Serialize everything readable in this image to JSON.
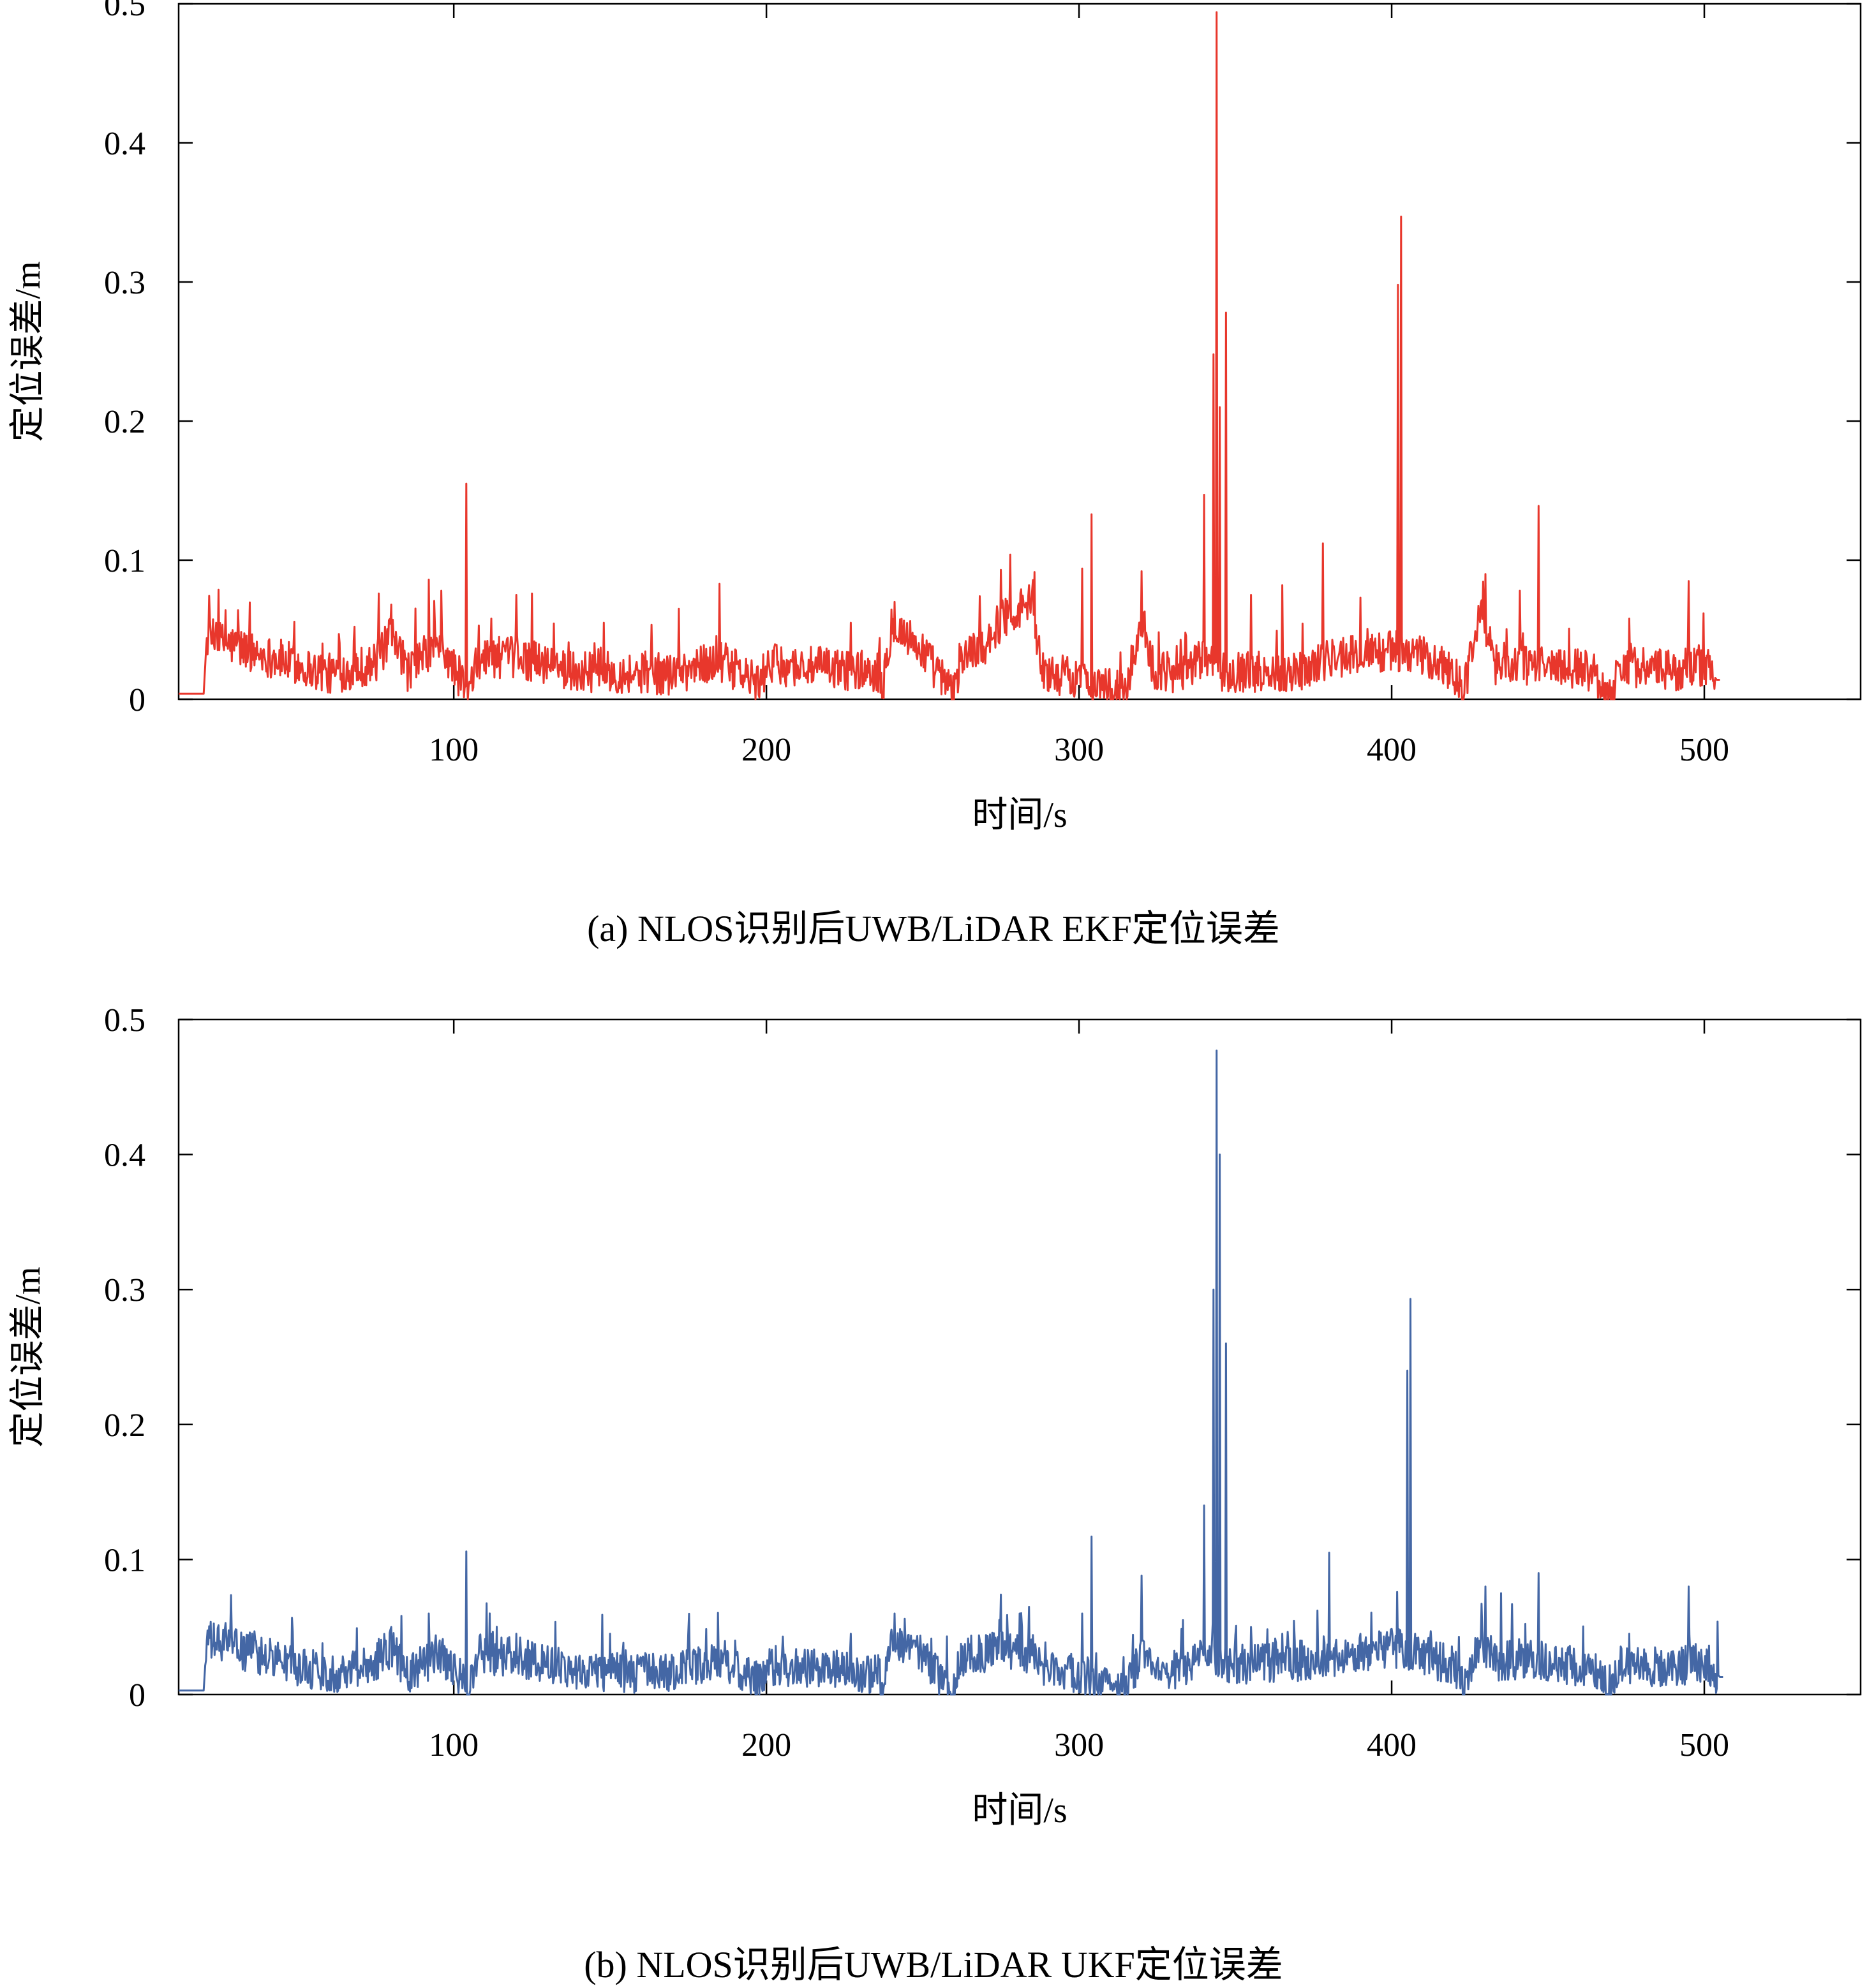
{
  "chart_data": [
    {
      "type": "line",
      "caption": "(a) NLOS识别后UWB/LiDAR EKF定位误差",
      "xlabel": "时间/s",
      "ylabel": "定位误差/m",
      "xlim": [
        12,
        550
      ],
      "ylim": [
        0,
        0.5
      ],
      "xticks": [
        100,
        200,
        300,
        400,
        500
      ],
      "yticks": [
        0,
        0.1,
        0.2,
        0.3,
        0.4,
        0.5
      ],
      "xtick_labels": [
        "100",
        "200",
        "300",
        "400",
        "500"
      ],
      "ytick_labels": [
        "0",
        "0.1",
        "0.2",
        "0.3",
        "0.4",
        "0.5"
      ],
      "grid": false,
      "color": "#e8372c",
      "series": [
        {
          "x_range": [
            12,
            505
          ],
          "baseline": [
            [
              12,
              0.004
            ],
            [
              20,
              0.004
            ],
            [
              21,
              0.044
            ],
            [
              60,
              0.018
            ],
            [
              75,
              0.026
            ],
            [
              80,
              0.045
            ],
            [
              85,
              0.02
            ],
            [
              95,
              0.04
            ],
            [
              105,
              0.005
            ],
            [
              108,
              0.03
            ],
            [
              120,
              0.03
            ],
            [
              140,
              0.02
            ],
            [
              170,
              0.018
            ],
            [
              185,
              0.028
            ],
            [
              198,
              0.01
            ],
            [
              200,
              0.025
            ],
            [
              236,
              0.02
            ],
            [
              237,
              0.0
            ],
            [
              240,
              0.055
            ],
            [
              250,
              0.035
            ],
            [
              256,
              0.015
            ],
            [
              260,
              0.002
            ],
            [
              262,
              0.03
            ],
            [
              270,
              0.04
            ],
            [
              276,
              0.06
            ],
            [
              285,
              0.07
            ],
            [
              288,
              0.02
            ],
            [
              300,
              0.015
            ],
            [
              315,
              0.004
            ],
            [
              320,
              0.06
            ],
            [
              324,
              0.02
            ],
            [
              335,
              0.02
            ],
            [
              340,
              0.03
            ],
            [
              345,
              0.02
            ],
            [
              350,
              0.02
            ],
            [
              370,
              0.02
            ],
            [
              380,
              0.03
            ],
            [
              400,
              0.035
            ],
            [
              410,
              0.03
            ],
            [
              420,
              0.02
            ],
            [
              423,
              0.004
            ],
            [
              428,
              0.065
            ],
            [
              433,
              0.025
            ],
            [
              450,
              0.025
            ],
            [
              465,
              0.02
            ],
            [
              470,
              0.0
            ],
            [
              473,
              0.025
            ],
            [
              490,
              0.02
            ],
            [
              500,
              0.025
            ],
            [
              504,
              0.014
            ],
            [
              505,
              0.014
            ]
          ],
          "spikes": [
            [
              21,
              0.044
            ],
            [
              24,
              0.055
            ],
            [
              27,
              0.064
            ],
            [
              31,
              0.064
            ],
            [
              36,
              0.04
            ],
            [
              58,
              0.04
            ],
            [
              76,
              0.076
            ],
            [
              80,
              0.068
            ],
            [
              92,
              0.086
            ],
            [
              96,
              0.078
            ],
            [
              104,
              0.155
            ],
            [
              112,
              0.058
            ],
            [
              120,
              0.075
            ],
            [
              125,
              0.076
            ],
            [
              148,
              0.055
            ],
            [
              172,
              0.065
            ],
            [
              185,
              0.083
            ],
            [
              227,
              0.055
            ],
            [
              241,
              0.07
            ],
            [
              275,
              0.093
            ],
            [
              278,
              0.104
            ],
            [
              284,
              0.082
            ],
            [
              301,
              0.094
            ],
            [
              304,
              0.133
            ],
            [
              320,
              0.092
            ],
            [
              340,
              0.147
            ],
            [
              343,
              0.248
            ],
            [
              344,
              0.494
            ],
            [
              345,
              0.21
            ],
            [
              347,
              0.278
            ],
            [
              355,
              0.075
            ],
            [
              365,
              0.082
            ],
            [
              378,
              0.112
            ],
            [
              390,
              0.073
            ],
            [
              402,
              0.298
            ],
            [
              403,
              0.347
            ],
            [
              430,
              0.09
            ],
            [
              441,
              0.078
            ],
            [
              447,
              0.139
            ],
            [
              476,
              0.058
            ],
            [
              495,
              0.085
            ]
          ]
        }
      ]
    },
    {
      "type": "line",
      "caption": "(b) NLOS识别后UWB/LiDAR UKF定位误差",
      "xlabel": "时间/s",
      "ylabel": "定位误差/m",
      "xlim": [
        12,
        550
      ],
      "ylim": [
        0,
        0.5
      ],
      "xticks": [
        100,
        200,
        300,
        400,
        500
      ],
      "yticks": [
        0,
        0.1,
        0.2,
        0.3,
        0.4,
        0.5
      ],
      "xtick_labels": [
        "100",
        "200",
        "300",
        "400",
        "500"
      ],
      "ytick_labels": [
        "0",
        "0.1",
        "0.2",
        "0.3",
        "0.4",
        "0.5"
      ],
      "grid": false,
      "color": "#4467a5",
      "series": [
        {
          "x_range": [
            12,
            506
          ],
          "baseline": [
            [
              12,
              0.003
            ],
            [
              20,
              0.003
            ],
            [
              21,
              0.04
            ],
            [
              60,
              0.015
            ],
            [
              75,
              0.025
            ],
            [
              80,
              0.035
            ],
            [
              85,
              0.015
            ],
            [
              95,
              0.03
            ],
            [
              105,
              0.005
            ],
            [
              108,
              0.03
            ],
            [
              120,
              0.028
            ],
            [
              140,
              0.018
            ],
            [
              170,
              0.015
            ],
            [
              185,
              0.025
            ],
            [
              198,
              0.008
            ],
            [
              200,
              0.022
            ],
            [
              236,
              0.015
            ],
            [
              237,
              0.0
            ],
            [
              240,
              0.035
            ],
            [
              250,
              0.03
            ],
            [
              256,
              0.012
            ],
            [
              260,
              0.002
            ],
            [
              262,
              0.028
            ],
            [
              270,
              0.03
            ],
            [
              276,
              0.035
            ],
            [
              285,
              0.03
            ],
            [
              288,
              0.02
            ],
            [
              300,
              0.015
            ],
            [
              315,
              0.003
            ],
            [
              320,
              0.03
            ],
            [
              324,
              0.015
            ],
            [
              335,
              0.02
            ],
            [
              340,
              0.028
            ],
            [
              345,
              0.02
            ],
            [
              350,
              0.022
            ],
            [
              370,
              0.025
            ],
            [
              380,
              0.028
            ],
            [
              400,
              0.035
            ],
            [
              410,
              0.03
            ],
            [
              420,
              0.02
            ],
            [
              423,
              0.005
            ],
            [
              428,
              0.04
            ],
            [
              433,
              0.025
            ],
            [
              450,
              0.025
            ],
            [
              465,
              0.018
            ],
            [
              470,
              0.0
            ],
            [
              473,
              0.022
            ],
            [
              490,
              0.02
            ],
            [
              500,
              0.025
            ],
            [
              505,
              0.013
            ],
            [
              506,
              0.013
            ]
          ],
          "spikes": [
            [
              21,
              0.04
            ],
            [
              27,
              0.053
            ],
            [
              36,
              0.038
            ],
            [
              58,
              0.038
            ],
            [
              80,
              0.05
            ],
            [
              92,
              0.06
            ],
            [
              104,
              0.106
            ],
            [
              112,
              0.045
            ],
            [
              120,
              0.045
            ],
            [
              150,
              0.045
            ],
            [
              175,
              0.045
            ],
            [
              190,
              0.04
            ],
            [
              227,
              0.045
            ],
            [
              241,
              0.06
            ],
            [
              275,
              0.074
            ],
            [
              281,
              0.06
            ],
            [
              284,
              0.065
            ],
            [
              301,
              0.06
            ],
            [
              304,
              0.117
            ],
            [
              320,
              0.088
            ],
            [
              340,
              0.14
            ],
            [
              343,
              0.3
            ],
            [
              344,
              0.477
            ],
            [
              345,
              0.4
            ],
            [
              347,
              0.26
            ],
            [
              355,
              0.05
            ],
            [
              365,
              0.045
            ],
            [
              380,
              0.105
            ],
            [
              390,
              0.045
            ],
            [
              405,
              0.24
            ],
            [
              406,
              0.293
            ],
            [
              430,
              0.08
            ],
            [
              435,
              0.075
            ],
            [
              447,
              0.09
            ],
            [
              476,
              0.045
            ],
            [
              495,
              0.08
            ]
          ]
        }
      ]
    }
  ]
}
